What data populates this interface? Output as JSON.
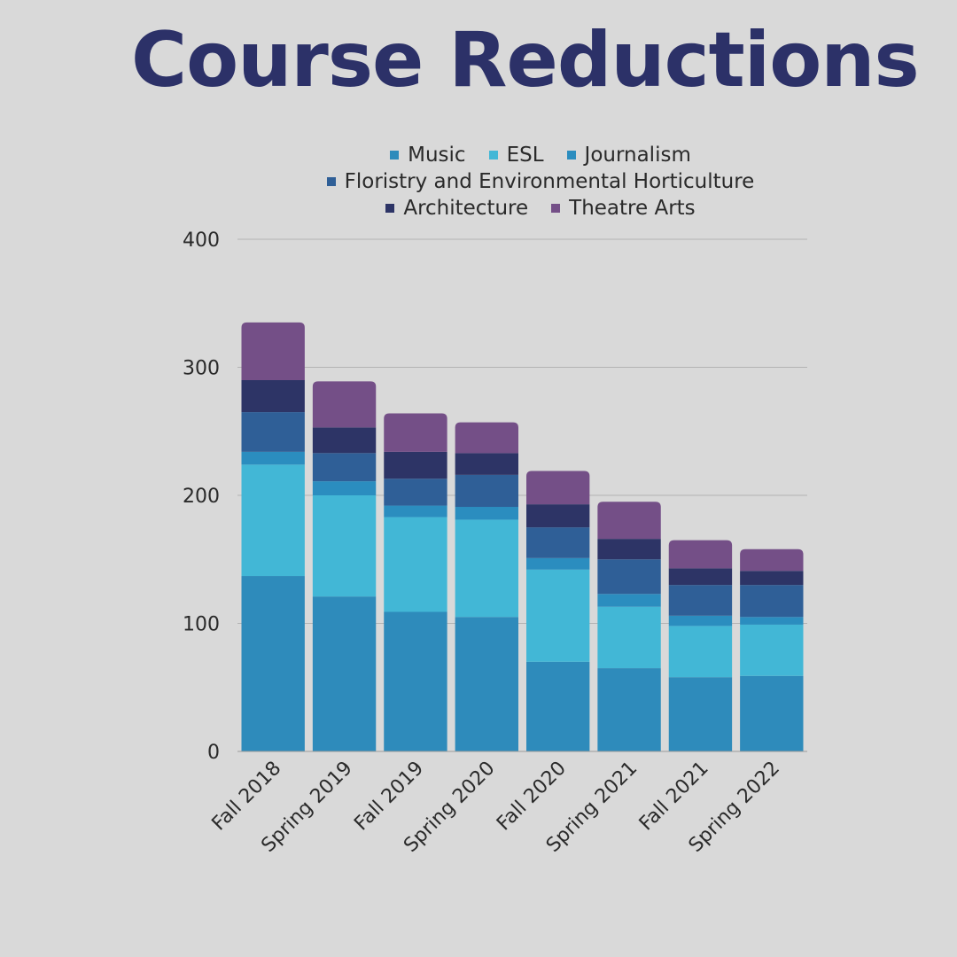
{
  "title": "Course Reductions",
  "chart_data": {
    "type": "bar",
    "stacked": true,
    "title": "Course Reductions",
    "xlabel": "",
    "ylabel": "",
    "ylim": [
      0,
      400
    ],
    "yticks": [
      "0",
      "100",
      "200",
      "300",
      "400"
    ],
    "grid": true,
    "legend_position": "top",
    "categories": [
      "Fall 2018",
      "Spring 2019",
      "Fall 2019",
      "Spring 2020",
      "Fall 2020",
      "Spring 2021",
      "Fall 2021",
      "Spring 2022"
    ],
    "series": [
      {
        "name": "Music",
        "color": "#2e8bbb",
        "values": [
          137,
          121,
          109,
          105,
          70,
          65,
          58,
          59
        ]
      },
      {
        "name": "ESL",
        "color": "#42b7d6",
        "values": [
          87,
          79,
          74,
          76,
          72,
          48,
          40,
          40
        ]
      },
      {
        "name": "Journalism",
        "color": "#2b8dbf",
        "values": [
          10,
          11,
          9,
          10,
          9,
          10,
          8,
          6
        ]
      },
      {
        "name": "Floristry and Environmental Horticulture",
        "color": "#2f5f97",
        "values": [
          31,
          22,
          21,
          25,
          24,
          27,
          24,
          25
        ]
      },
      {
        "name": "Architecture",
        "color": "#2d3466",
        "values": [
          25,
          20,
          21,
          17,
          18,
          16,
          13,
          11
        ]
      },
      {
        "name": "Theatre Arts",
        "color": "#744f87",
        "values": [
          45,
          36,
          30,
          24,
          26,
          29,
          22,
          17
        ]
      }
    ]
  }
}
